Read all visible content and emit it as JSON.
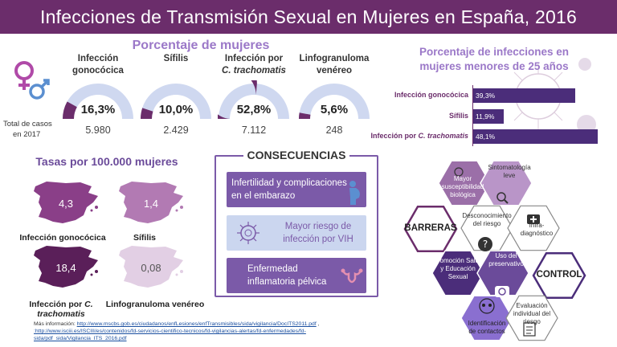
{
  "header": {
    "title": "Infecciones de Transmisión Sexual en Mujeres en España, 2016"
  },
  "gauges": {
    "title": "Porcentaje de mujeres",
    "total_label_line1": "Total de casos",
    "total_label_line2": "en 2017",
    "items": [
      {
        "label1": "Infección",
        "label2": "gonocócica",
        "pct": "16,3%",
        "fraction": 0.163,
        "count": "5.980"
      },
      {
        "label1": "Sífilis",
        "label2": "",
        "pct": "10,0%",
        "fraction": 0.1,
        "count": "2.429"
      },
      {
        "label1": "Infección por",
        "label2": "C. trachomatis",
        "pct": "52,8%",
        "fraction": 0.528,
        "count": "7.112"
      },
      {
        "label1": "Linfogranuloma",
        "label2": "venéreo",
        "pct": "5,6%",
        "fraction": 0.056,
        "count": "248"
      }
    ],
    "colors": {
      "fill": "#6b2d6b",
      "track": "#cfd8f0"
    }
  },
  "young": {
    "title_line1": "Porcentaje de infecciones en",
    "title_line2": "mujeres menores de 25 años"
  },
  "chart_data": {
    "type": "bar",
    "categories": [
      "Infección gonocócica",
      "Sífilis",
      "Infección por C. trachomatis"
    ],
    "values": [
      39.3,
      11.9,
      48.1
    ],
    "value_labels": [
      "39,3%",
      "11,9%",
      "48,1%"
    ],
    "title": "Porcentaje de infecciones en mujeres menores de 25 años",
    "xlabel": "",
    "ylabel": "",
    "ylim": [
      0,
      48.1
    ]
  },
  "rates": {
    "title": "Tasas por 100.000 mujeres",
    "items": [
      {
        "label": "Infección gonocócica",
        "value": "4,3",
        "color": "#8a3f88"
      },
      {
        "label": "Sífilis",
        "value": "1,4",
        "color": "#b27ab3"
      },
      {
        "label_a": "Infección por ",
        "label_b": "C. trachomatis",
        "value": "18,4",
        "color": "#5a1f59"
      },
      {
        "label": "Linfogranuloma venéreo",
        "value": "0,08",
        "color": "#e2cfe4"
      }
    ]
  },
  "consequences": {
    "title": "CONSECUENCIAS",
    "items": [
      {
        "text1": "Infertilidad y complicaciones",
        "text2": "en el embarazo",
        "icon": "pregnant-icon"
      },
      {
        "text1": "Mayor riesgo de",
        "text2": "infección por VIH",
        "icon": "virus-icon"
      },
      {
        "text1": "Enfermedad",
        "text2": "inflamatoria pélvica",
        "icon": "uterus-icon"
      }
    ]
  },
  "hexes": {
    "barriers": "BARRERAS",
    "control": "CONTROL",
    "susceptibility": [
      "Mayor",
      "susceptibilidad",
      "biológica"
    ],
    "symptoms": [
      "Sintomatología",
      "leve"
    ],
    "ignorance": [
      "Desconocimiento",
      "del riesgo"
    ],
    "underdiagnosis": [
      "Infra-",
      "diagnóstico"
    ],
    "education": [
      "Promoción Salud",
      "y Educación",
      "Sexual"
    ],
    "condom": [
      "Uso del",
      "preservativo"
    ],
    "evaluation": [
      "Evaluación",
      "individual del",
      "riesgo"
    ],
    "contacts": [
      "Identificación",
      "de contactos"
    ]
  },
  "footer": {
    "prefix": "Más información: ",
    "link1": "http://www.mscbs.gob.es/ciudadanos/enfLesiones/enfTransmisibles/sida/vigilancia/DocITS2011.pdf",
    "sep": " ,",
    "link2": ":http://www.isciii.es/ISCIII/es/contenidos/fd-servicios-cientifico-tecnicos/fd-vigilancias-alertas/fd-enfermedades/fd-",
    "link3": "sida/pdf_sida/Vigilancia_ITS_2016.pdf"
  }
}
